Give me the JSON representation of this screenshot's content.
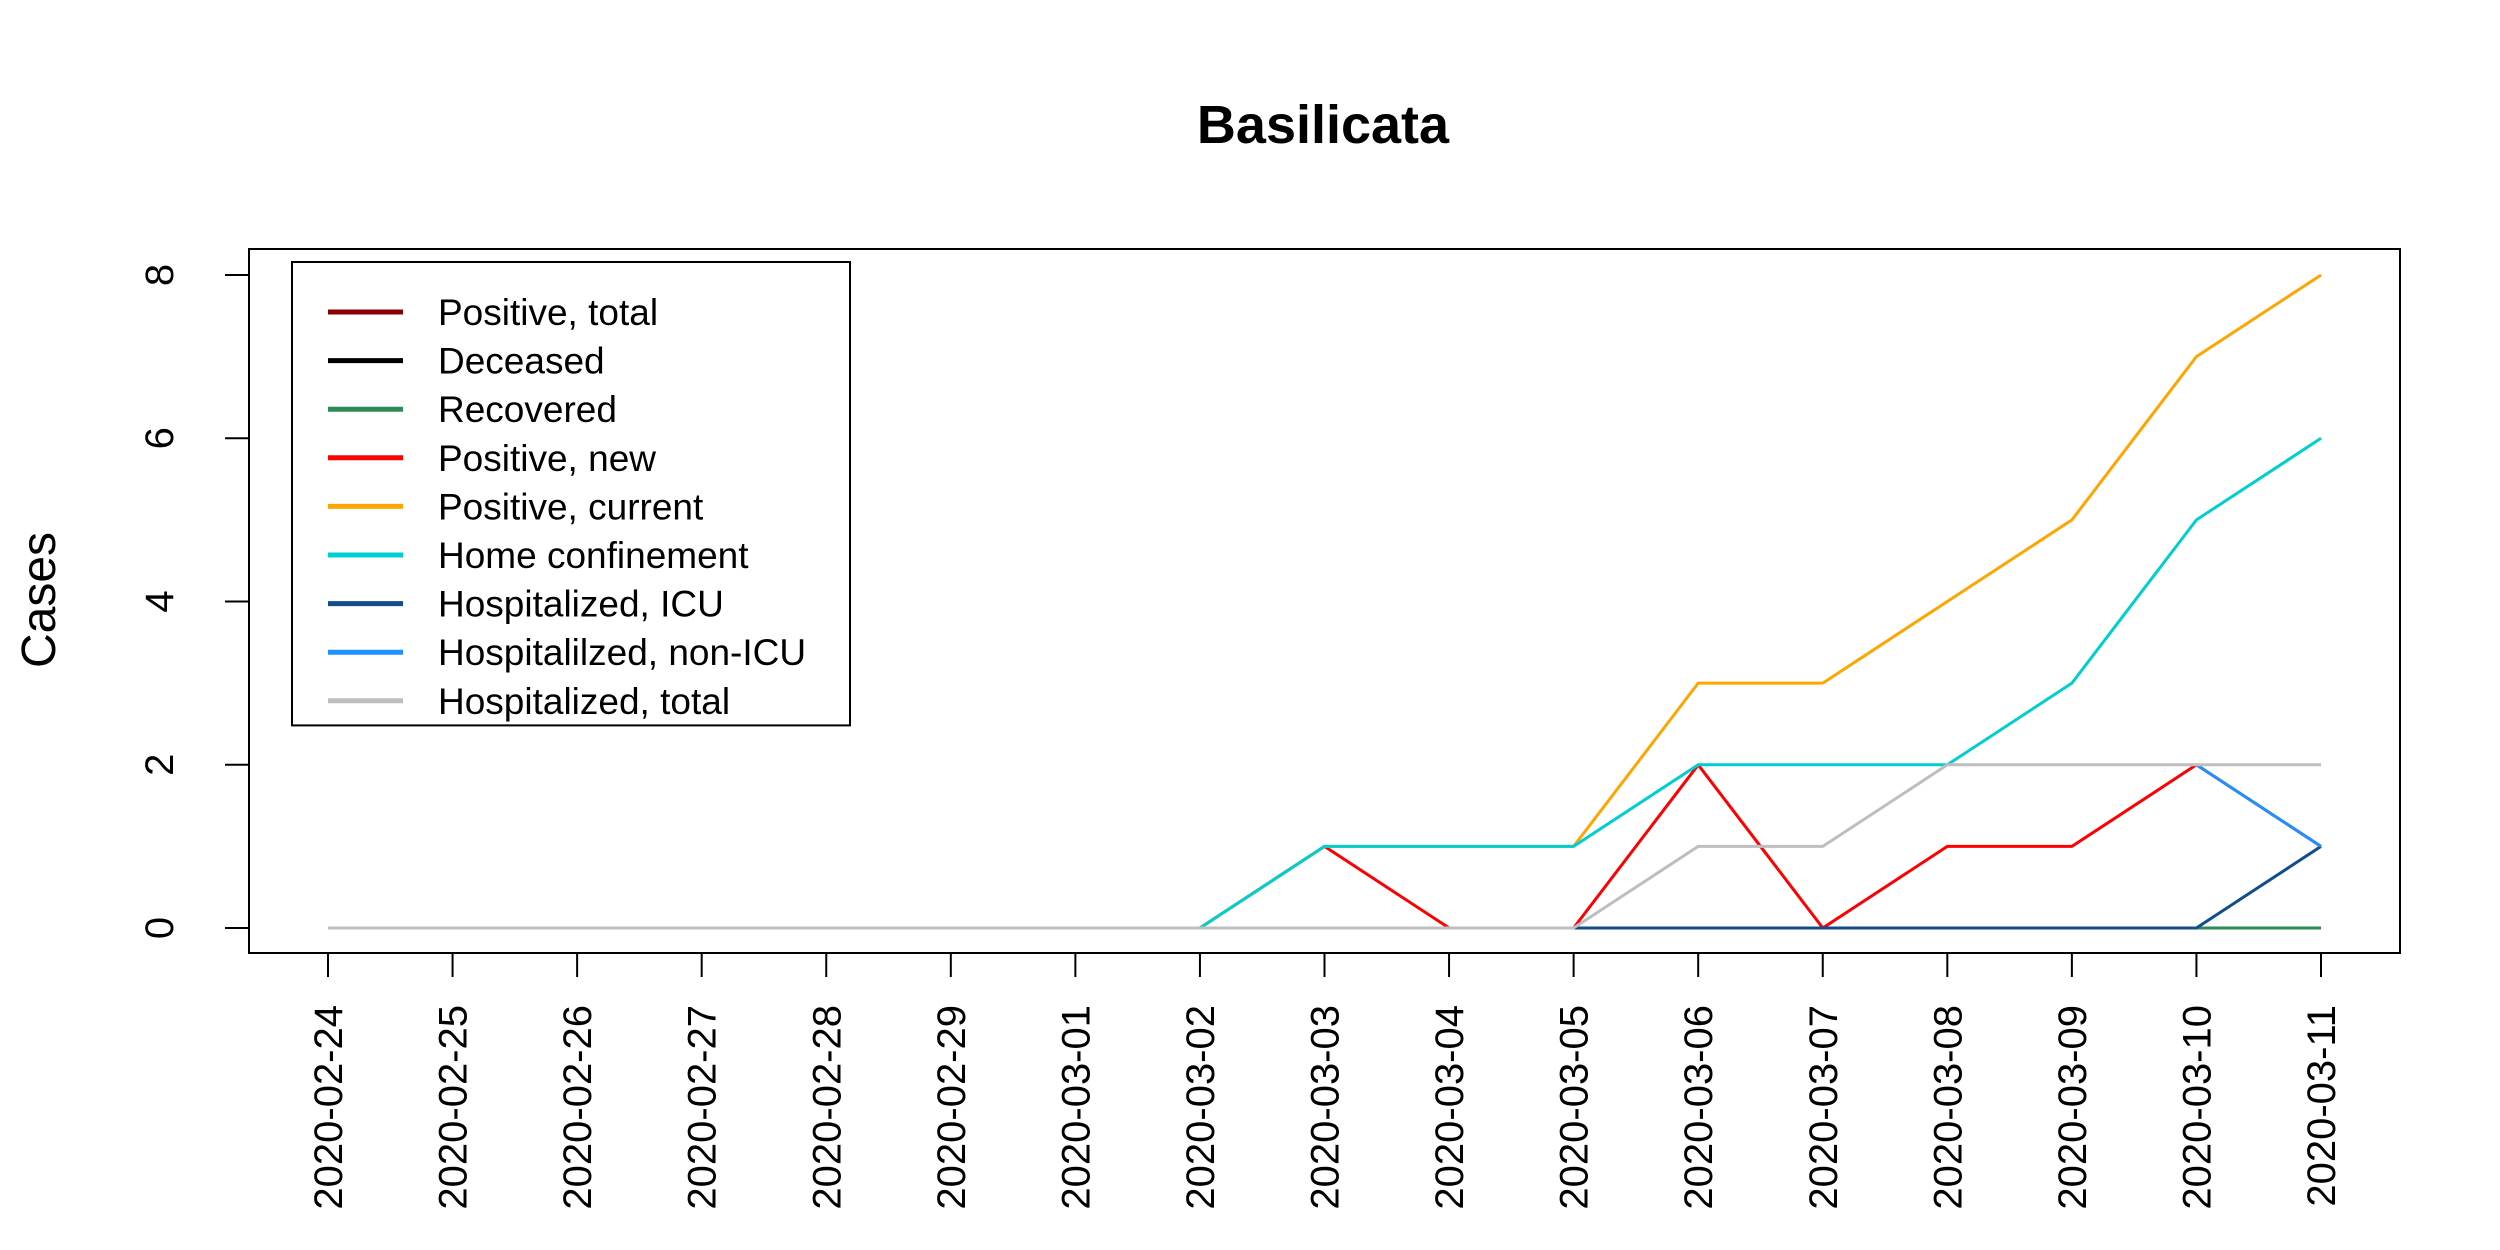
{
  "chart_data": {
    "type": "line",
    "title": "Basilicata",
    "xlabel": "",
    "ylabel": "Cases",
    "ylim": [
      0,
      8
    ],
    "yticks": [
      "0",
      "2",
      "4",
      "6",
      "8"
    ],
    "grid": false,
    "legend_position": "top-left",
    "x": [
      "2020-02-24",
      "2020-02-25",
      "2020-02-26",
      "2020-02-27",
      "2020-02-28",
      "2020-02-29",
      "2020-03-01",
      "2020-03-02",
      "2020-03-03",
      "2020-03-04",
      "2020-03-05",
      "2020-03-06",
      "2020-03-07",
      "2020-03-08",
      "2020-03-09",
      "2020-03-10",
      "2020-03-11"
    ],
    "series": [
      {
        "name": "Positive, total",
        "color": "#8b0000",
        "values": [
          null,
          null,
          null,
          null,
          null,
          null,
          null,
          null,
          null,
          null,
          null,
          null,
          null,
          null,
          null,
          null,
          null
        ]
      },
      {
        "name": "Deceased",
        "color": "#000000",
        "values": [
          null,
          null,
          null,
          null,
          null,
          null,
          null,
          null,
          null,
          null,
          0,
          0,
          0,
          0,
          0,
          0,
          0
        ]
      },
      {
        "name": "Recovered",
        "color": "#2e8b57",
        "values": [
          null,
          null,
          null,
          null,
          null,
          null,
          null,
          null,
          null,
          null,
          0,
          0,
          0,
          0,
          0,
          0,
          0
        ]
      },
      {
        "name": "Positive, new",
        "color": "#ff0000",
        "values": [
          0,
          0,
          0,
          0,
          0,
          0,
          0,
          0,
          1,
          0,
          0,
          2,
          0,
          1,
          1,
          2,
          1
        ]
      },
      {
        "name": "Positive, current",
        "color": "#ffa500",
        "values": [
          0,
          0,
          0,
          0,
          0,
          0,
          0,
          0,
          1,
          1,
          1,
          3,
          3,
          4,
          5,
          7,
          8
        ]
      },
      {
        "name": "Home confinement",
        "color": "#00ced1",
        "values": [
          null,
          null,
          null,
          null,
          null,
          null,
          null,
          0,
          1,
          1,
          1,
          2,
          2,
          2,
          3,
          5,
          6
        ]
      },
      {
        "name": "Hospitalized, ICU",
        "color": "#104e8b",
        "values": [
          null,
          null,
          null,
          null,
          null,
          null,
          null,
          null,
          null,
          null,
          0,
          0,
          0,
          0,
          0,
          0,
          1
        ]
      },
      {
        "name": "Hospitalilzed, non-ICU",
        "color": "#1e90ff",
        "values": [
          null,
          null,
          null,
          null,
          null,
          null,
          null,
          null,
          null,
          null,
          null,
          null,
          null,
          null,
          null,
          2,
          1
        ]
      },
      {
        "name": "Hospitalized, total",
        "color": "#bebebe",
        "values": [
          0,
          0,
          0,
          0,
          0,
          0,
          0,
          0,
          0,
          0,
          0,
          1,
          1,
          2,
          2,
          2,
          2
        ]
      }
    ]
  }
}
